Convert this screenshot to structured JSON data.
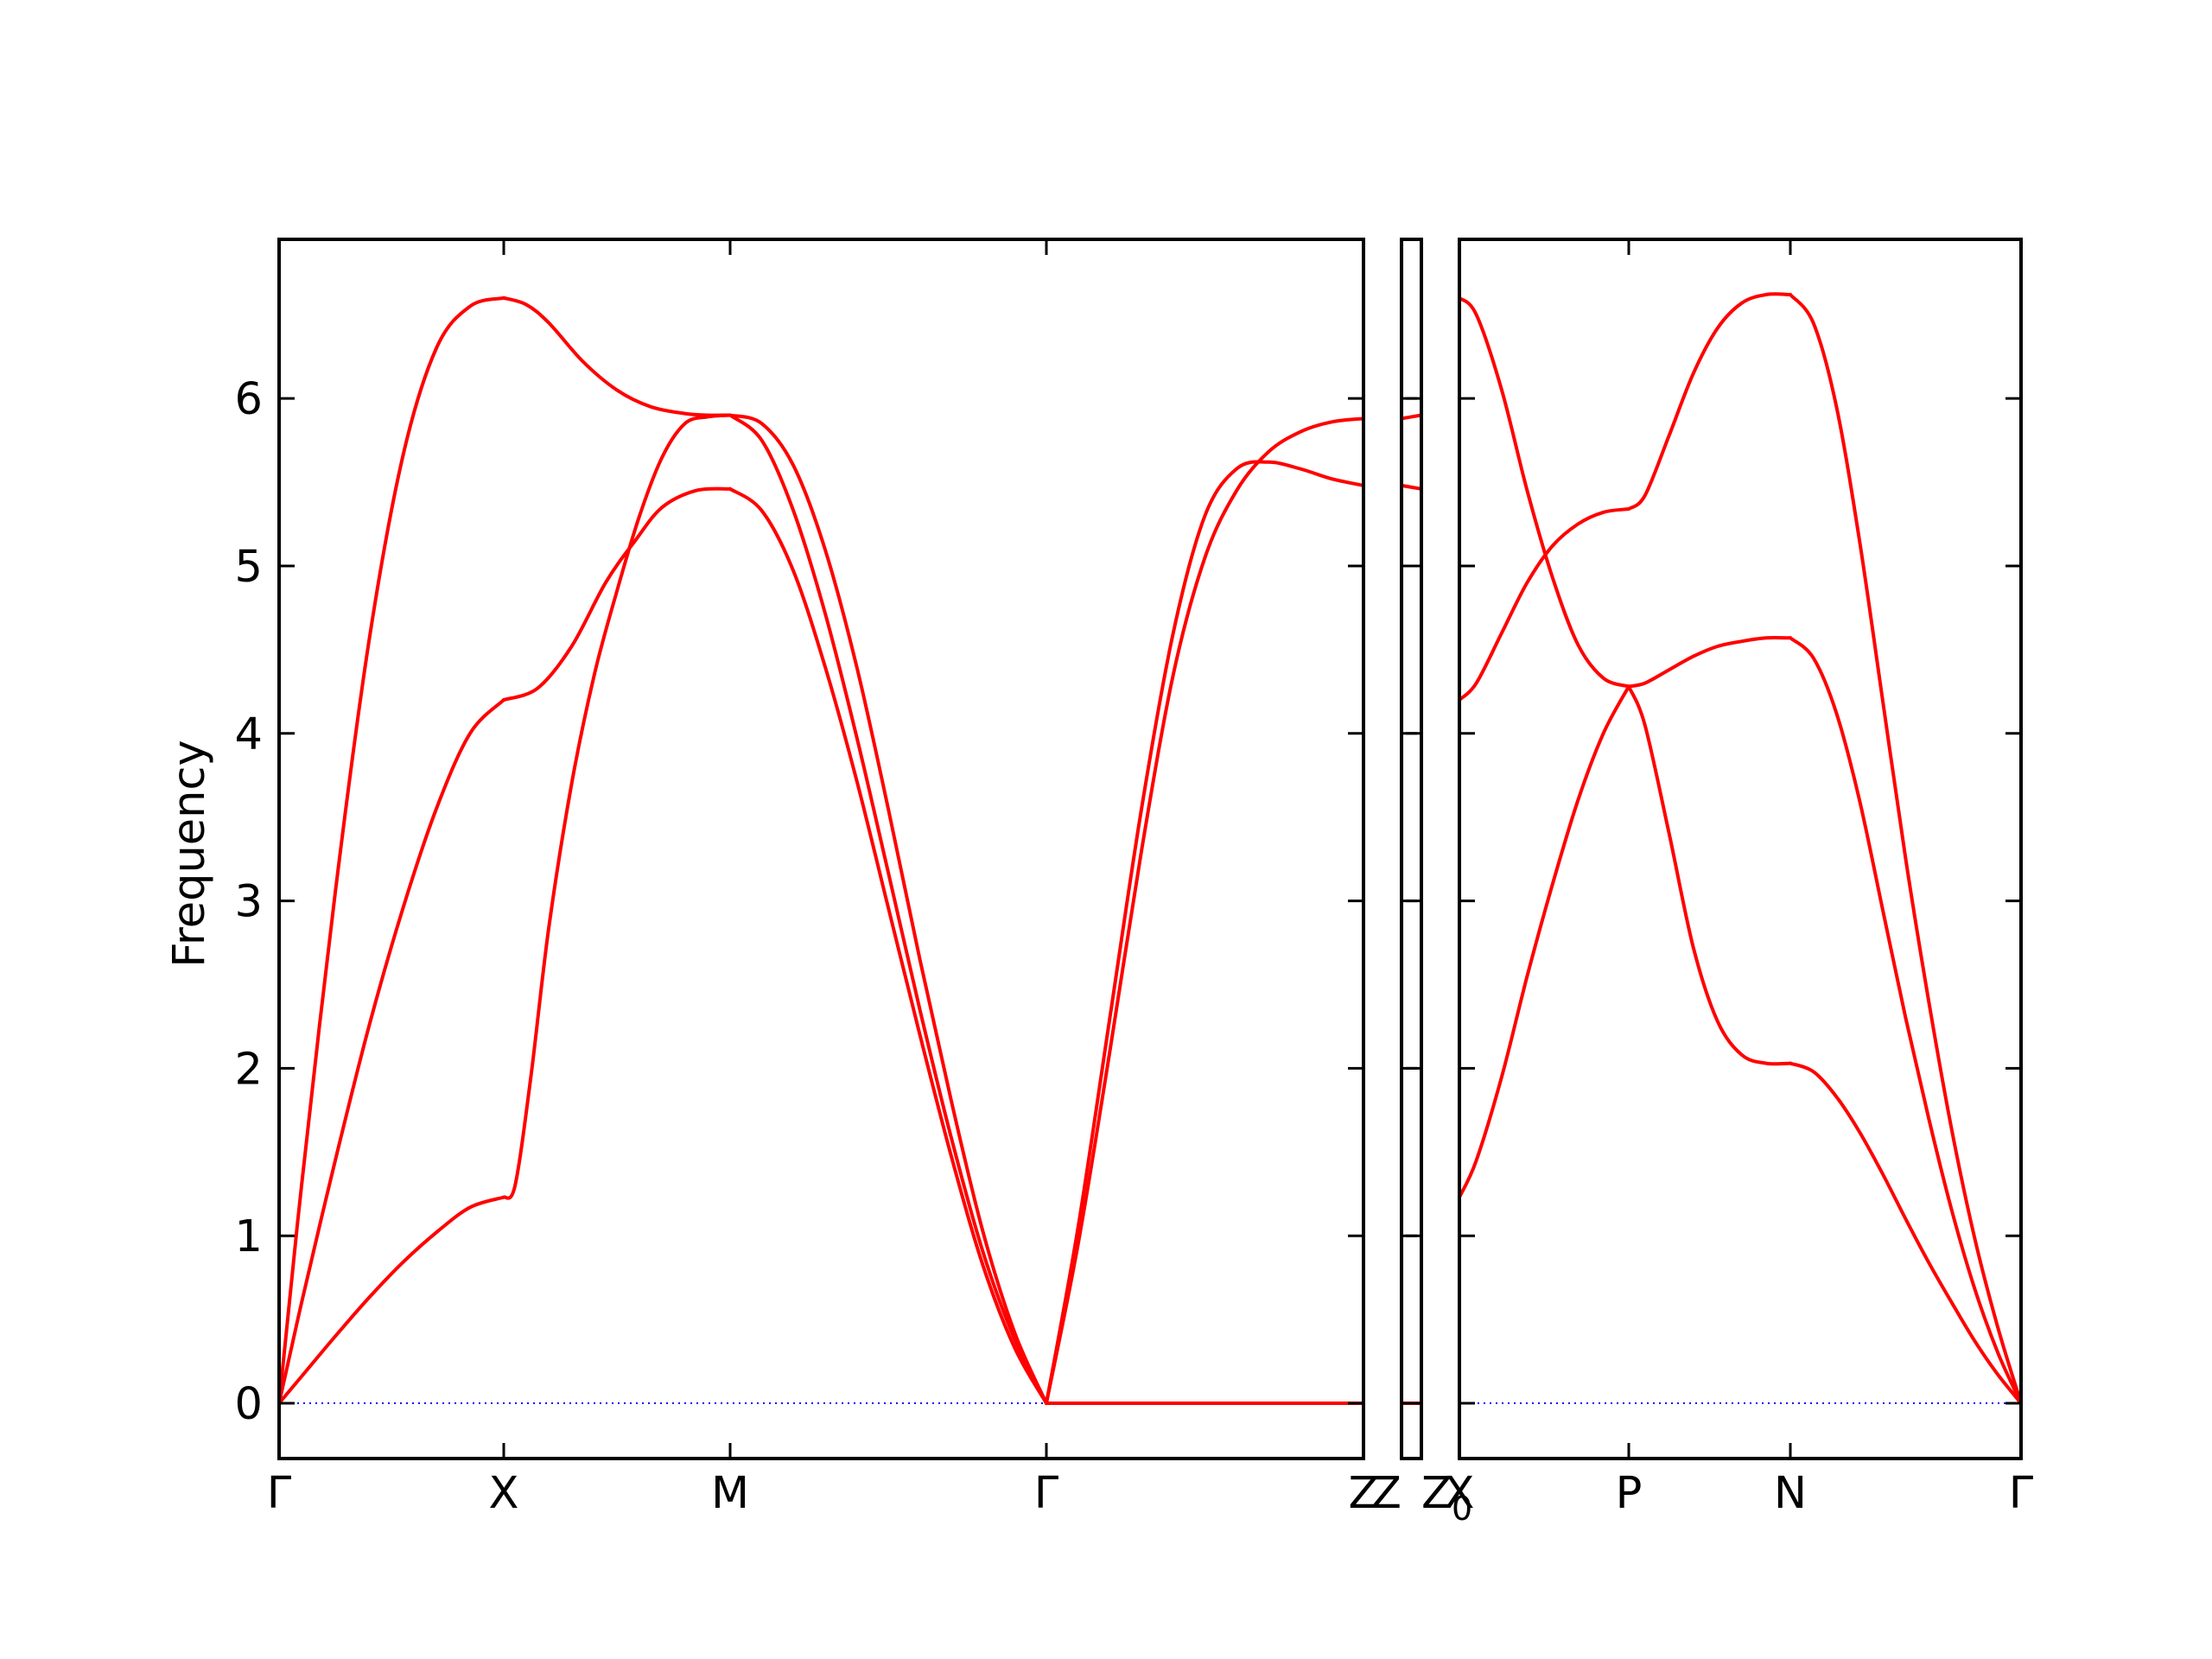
{
  "chart_data": {
    "type": "line",
    "ylabel": "Frequency",
    "ylim": [
      -0.33,
      6.95
    ],
    "yticks": [
      0,
      1,
      2,
      3,
      4,
      5,
      6
    ],
    "grid": false,
    "colors": {
      "bands": "#ff0000",
      "zero_line": "#0000ff",
      "frame": "#000000"
    },
    "panels": [
      {
        "segments": [
          {
            "path": [
              "Γ",
              "X"
            ],
            "series": [
              {
                "x": [
                  0,
                  0.1,
                  0.25,
                  0.4,
                  0.55,
                  0.7,
                  0.85,
                  1
                ],
                "values": [
                  0,
                  0.16,
                  0.4,
                  0.63,
                  0.84,
                  1.02,
                  1.17,
                  1.23
                ]
              },
              {
                "x": [
                  0,
                  0.1,
                  0.25,
                  0.4,
                  0.55,
                  0.7,
                  0.85,
                  1
                ],
                "values": [
                  0,
                  0.6,
                  1.45,
                  2.25,
                  2.95,
                  3.55,
                  4.0,
                  4.2
                ]
              },
              {
                "x": [
                  0,
                  0.1,
                  0.25,
                  0.4,
                  0.55,
                  0.7,
                  0.85,
                  1
                ],
                "values": [
                  0,
                  1.3,
                  3.05,
                  4.55,
                  5.65,
                  6.3,
                  6.55,
                  6.6
                ]
              }
            ]
          },
          {
            "path": [
              "X",
              "M"
            ],
            "series": [
              {
                "x": [
                  0,
                  0.05,
                  0.12,
                  0.2,
                  0.3,
                  0.4,
                  0.5,
                  0.6,
                  0.7,
                  0.8,
                  0.9,
                  1
                ],
                "values": [
                  1.23,
                  1.3,
                  1.95,
                  2.85,
                  3.7,
                  4.35,
                  4.85,
                  5.3,
                  5.65,
                  5.85,
                  5.89,
                  5.9
                ]
              },
              {
                "x": [
                  0,
                  0.15,
                  0.3,
                  0.45,
                  0.58,
                  0.7,
                  0.85,
                  1
                ],
                "values": [
                  4.2,
                  4.27,
                  4.52,
                  4.9,
                  5.15,
                  5.35,
                  5.45,
                  5.46
                ]
              },
              {
                "x": [
                  0,
                  0.1,
                  0.2,
                  0.35,
                  0.5,
                  0.65,
                  0.8,
                  0.9,
                  1
                ],
                "values": [
                  6.6,
                  6.56,
                  6.45,
                  6.22,
                  6.05,
                  5.95,
                  5.91,
                  5.9,
                  5.9
                ]
              }
            ]
          },
          {
            "path": [
              "M",
              "Γ"
            ],
            "series": [
              {
                "x": [
                  0,
                  0.1,
                  0.2,
                  0.3,
                  0.4,
                  0.5,
                  0.6,
                  0.7,
                  0.8,
                  0.9,
                  1
                ],
                "values": [
                  5.46,
                  5.33,
                  4.97,
                  4.4,
                  3.72,
                  2.96,
                  2.2,
                  1.47,
                  0.82,
                  0.33,
                  0
                ]
              },
              {
                "x": [
                  0,
                  0.1,
                  0.2,
                  0.3,
                  0.4,
                  0.5,
                  0.6,
                  0.7,
                  0.8,
                  0.9,
                  1
                ],
                "values": [
                  5.9,
                  5.75,
                  5.33,
                  4.72,
                  3.98,
                  3.17,
                  2.35,
                  1.58,
                  0.9,
                  0.38,
                  0
                ]
              },
              {
                "x": [
                  0,
                  0.1,
                  0.2,
                  0.3,
                  0.4,
                  0.5,
                  0.6,
                  0.7,
                  0.8,
                  0.9,
                  1
                ],
                "values": [
                  5.9,
                  5.85,
                  5.6,
                  5.1,
                  4.4,
                  3.55,
                  2.65,
                  1.8,
                  1.02,
                  0.42,
                  0
                ]
              }
            ]
          },
          {
            "path": [
              "Γ",
              "Z"
            ],
            "series": [
              {
                "x": [
                  0,
                  0.1,
                  0.2,
                  0.3,
                  0.4,
                  0.5,
                  0.6,
                  0.7,
                  0.8,
                  0.9,
                  1
                ],
                "values": [
                  0,
                  1.05,
                  2.3,
                  3.55,
                  4.6,
                  5.3,
                  5.58,
                  5.62,
                  5.58,
                  5.52,
                  5.48
                ]
              },
              {
                "x": [
                  0,
                  0.1,
                  0.2,
                  0.3,
                  0.4,
                  0.5,
                  0.6,
                  0.7,
                  0.8,
                  0.9,
                  1
                ],
                "values": [
                  0,
                  0.95,
                  2.1,
                  3.3,
                  4.35,
                  5.05,
                  5.45,
                  5.68,
                  5.8,
                  5.86,
                  5.88
                ]
              },
              {
                "x": [
                  0,
                  1
                ],
                "values": [
                  0,
                  0
                ]
              }
            ]
          }
        ]
      },
      {
        "segments": [
          {
            "path": [
              "Z",
              "Z_0"
            ],
            "series": [
              {
                "x": [
                  0,
                  1
                ],
                "values": [
                  5.88,
                  5.9
                ]
              },
              {
                "x": [
                  0,
                  1
                ],
                "values": [
                  5.48,
                  5.46
                ]
              },
              {
                "x": [
                  0,
                  1
                ],
                "values": [
                  0,
                  0
                ]
              }
            ]
          }
        ]
      },
      {
        "segments": [
          {
            "path": [
              "X",
              "P"
            ],
            "series": [
              {
                "x": [
                  0,
                  0.1,
                  0.25,
                  0.4,
                  0.55,
                  0.7,
                  0.85,
                  1
                ],
                "values": [
                  6.6,
                  6.5,
                  6.05,
                  5.45,
                  4.93,
                  4.53,
                  4.33,
                  4.28
                ]
              },
              {
                "x": [
                  0,
                  0.1,
                  0.25,
                  0.4,
                  0.55,
                  0.7,
                  0.85,
                  1
                ],
                "values": [
                  4.2,
                  4.3,
                  4.6,
                  4.9,
                  5.12,
                  5.25,
                  5.32,
                  5.34
                ]
              },
              {
                "x": [
                  0,
                  0.1,
                  0.25,
                  0.4,
                  0.55,
                  0.7,
                  0.85,
                  1
                ],
                "values": [
                  1.23,
                  1.45,
                  1.95,
                  2.55,
                  3.1,
                  3.6,
                  4.0,
                  4.28
                ]
              }
            ]
          },
          {
            "path": [
              "P",
              "N"
            ],
            "series": [
              {
                "x": [
                  0,
                  0.1,
                  0.25,
                  0.4,
                  0.55,
                  0.7,
                  0.85,
                  1
                ],
                "values": [
                  5.34,
                  5.42,
                  5.78,
                  6.15,
                  6.42,
                  6.57,
                  6.62,
                  6.62
                ]
              },
              {
                "x": [
                  0,
                  0.1,
                  0.25,
                  0.4,
                  0.55,
                  0.7,
                  0.85,
                  1
                ],
                "values": [
                  4.28,
                  4.3,
                  4.38,
                  4.46,
                  4.52,
                  4.55,
                  4.57,
                  4.57
                ]
              },
              {
                "x": [
                  0,
                  0.1,
                  0.25,
                  0.4,
                  0.55,
                  0.7,
                  0.85,
                  1
                ],
                "values": [
                  4.28,
                  4.05,
                  3.4,
                  2.72,
                  2.28,
                  2.08,
                  2.03,
                  2.03
                ]
              }
            ]
          },
          {
            "path": [
              "N",
              "Γ"
            ],
            "series": [
              {
                "x": [
                  0,
                  0.1,
                  0.2,
                  0.3,
                  0.4,
                  0.5,
                  0.6,
                  0.7,
                  0.8,
                  0.9,
                  1
                ],
                "values": [
                  6.62,
                  6.45,
                  5.95,
                  5.15,
                  4.2,
                  3.25,
                  2.4,
                  1.63,
                  0.98,
                  0.45,
                  0
                ]
              },
              {
                "x": [
                  0,
                  0.1,
                  0.2,
                  0.3,
                  0.4,
                  0.5,
                  0.6,
                  0.7,
                  0.8,
                  0.9,
                  1
                ],
                "values": [
                  4.57,
                  4.45,
                  4.12,
                  3.6,
                  2.95,
                  2.3,
                  1.7,
                  1.15,
                  0.68,
                  0.3,
                  0
                ]
              },
              {
                "x": [
                  0,
                  0.1,
                  0.2,
                  0.3,
                  0.4,
                  0.5,
                  0.6,
                  0.7,
                  0.8,
                  0.9,
                  1
                ],
                "values": [
                  2.03,
                  1.98,
                  1.83,
                  1.62,
                  1.37,
                  1.1,
                  0.84,
                  0.6,
                  0.37,
                  0.17,
                  0
                ]
              }
            ]
          }
        ]
      }
    ]
  }
}
